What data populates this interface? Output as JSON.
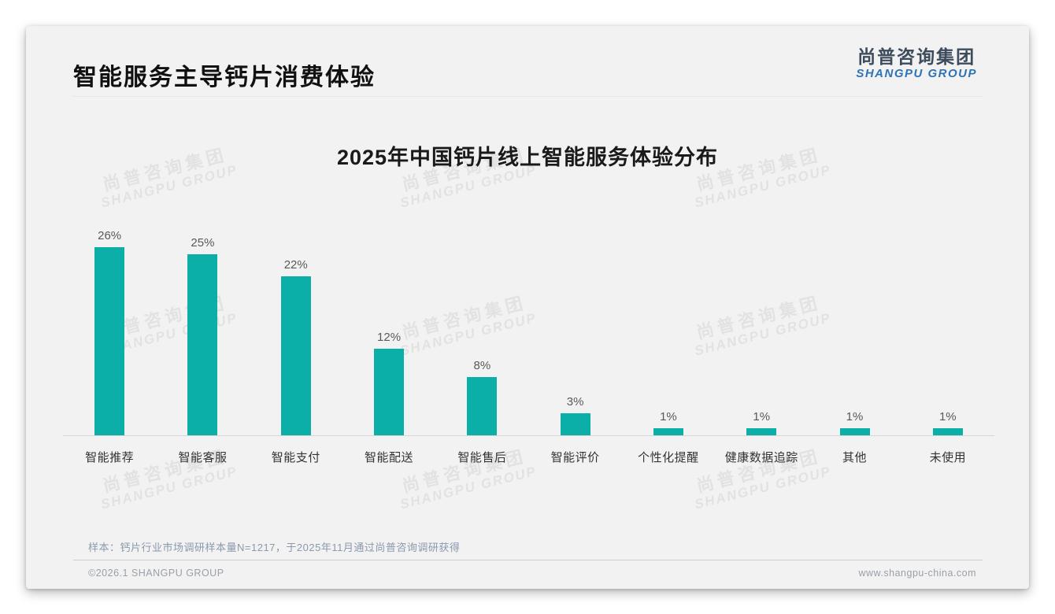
{
  "header": {
    "title": "智能服务主导钙片消费体验",
    "logo_cn": "尚普咨询集团",
    "logo_en": "SHANGPU GROUP"
  },
  "watermark": {
    "cn": "尚普咨询集团",
    "en": "SHANGPU GROUP"
  },
  "chart_data": {
    "type": "bar",
    "title": "2025年中国钙片线上智能服务体验分布",
    "categories": [
      "智能推荐",
      "智能客服",
      "智能支付",
      "智能配送",
      "智能售后",
      "智能评价",
      "个性化提醒",
      "健康数据追踪",
      "其他",
      "未使用"
    ],
    "values": [
      26,
      25,
      22,
      12,
      8,
      3,
      1,
      1,
      1,
      1
    ],
    "value_labels": [
      "26%",
      "25%",
      "22%",
      "12%",
      "8%",
      "3%",
      "1%",
      "1%",
      "1%",
      "1%"
    ],
    "unit": "%",
    "ylim": [
      0,
      28
    ],
    "grid": false,
    "legend": "none",
    "bar_color": "#0BAFA8"
  },
  "footer": {
    "note": "样本：钙片行业市场调研样本量N=1217，于2025年11月通过尚普咨询调研获得",
    "copyright": "©2026.1 SHANGPU GROUP",
    "website": "www.shangpu-china.com"
  },
  "colors": {
    "bar_teal": "#0BAFA8",
    "logo_blue": "#2E74B5",
    "logo_dark": "#3D4B5C",
    "card_bg": "#F2F2F2"
  }
}
